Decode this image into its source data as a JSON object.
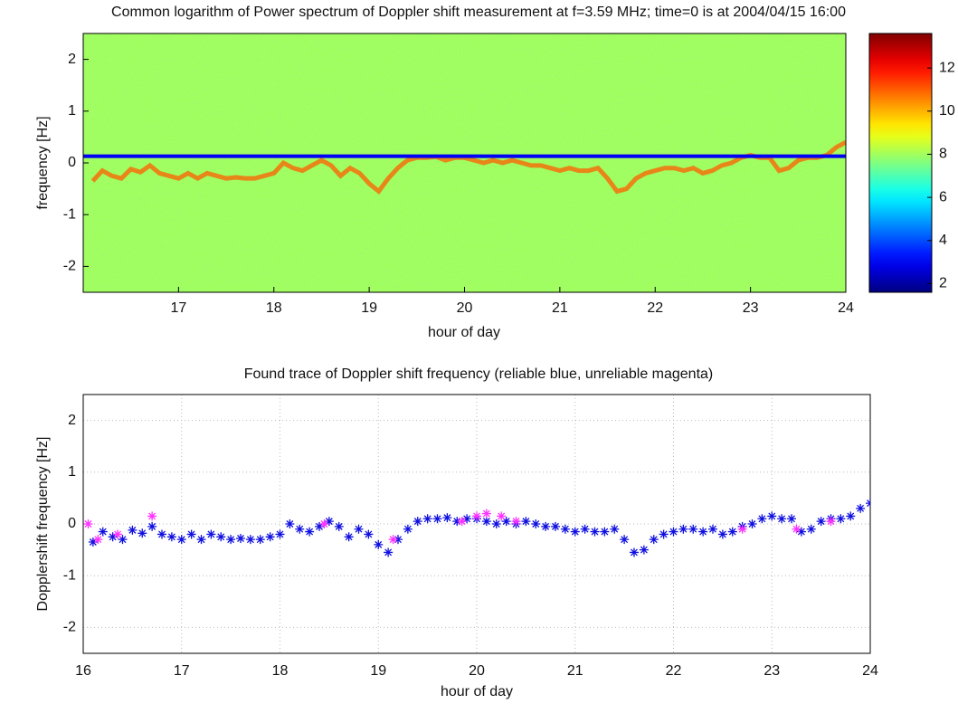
{
  "chart_data": [
    {
      "type": "spectrogram",
      "title": "Common logarithm of Power spectrum of Doppler shift measurement at f=3.59 MHz;  time=0 is at 2004/04/15 16:00",
      "xlabel": "hour of day",
      "ylabel": "frequency [Hz]",
      "xlim": [
        16,
        24
      ],
      "xticks": [
        17,
        18,
        19,
        20,
        21,
        22,
        23,
        24
      ],
      "ylim": [
        -2.5,
        2.5
      ],
      "yticks": [
        -2,
        -1,
        0,
        1,
        2
      ],
      "clim": [
        1.6,
        13.6
      ],
      "colorbar_ticks": [
        2,
        4,
        6,
        8,
        10,
        12
      ],
      "colormap": "jet",
      "background_level": 8,
      "carrier": {
        "frequency": 0.13,
        "level": 3
      },
      "trace_level": 11
    },
    {
      "type": "scatter",
      "title": "Found trace of Doppler shift frequency (reliable blue, unreliable magenta)",
      "xlabel": "hour of day",
      "ylabel": "Dopplershift frequency [Hz]",
      "xlim": [
        16,
        24
      ],
      "xticks": [
        16,
        17,
        18,
        19,
        20,
        21,
        22,
        23,
        24
      ],
      "ylim": [
        -2.5,
        2.5
      ],
      "yticks": [
        -2,
        -1,
        0,
        1,
        2
      ],
      "grid": true,
      "marker": "*",
      "series": [
        {
          "color": "#1010e0",
          "x": [
            16.1,
            16.2,
            16.3,
            16.4,
            16.5,
            16.6,
            16.7,
            16.8,
            16.9,
            17.0,
            17.1,
            17.2,
            17.3,
            17.4,
            17.5,
            17.6,
            17.7,
            17.8,
            17.9,
            18.0,
            18.1,
            18.2,
            18.3,
            18.4,
            18.5,
            18.6,
            18.7,
            18.8,
            18.9,
            19.0,
            19.1,
            19.2,
            19.3,
            19.4,
            19.5,
            19.6,
            19.7,
            19.8,
            19.9,
            20.0,
            20.1,
            20.2,
            20.3,
            20.4,
            20.5,
            20.6,
            20.7,
            20.8,
            20.9,
            21.0,
            21.1,
            21.2,
            21.3,
            21.4,
            21.5,
            21.6,
            21.7,
            21.8,
            21.9,
            22.0,
            22.1,
            22.2,
            22.3,
            22.4,
            22.5,
            22.6,
            22.7,
            22.8,
            22.9,
            23.0,
            23.1,
            23.2,
            23.3,
            23.4,
            23.5,
            23.6,
            23.7,
            23.8,
            23.9,
            24.0
          ],
          "values": [
            -0.35,
            -0.15,
            -0.25,
            -0.3,
            -0.12,
            -0.18,
            -0.05,
            -0.2,
            -0.25,
            -0.3,
            -0.2,
            -0.3,
            -0.2,
            -0.25,
            -0.3,
            -0.28,
            -0.3,
            -0.3,
            -0.25,
            -0.2,
            0.0,
            -0.1,
            -0.15,
            -0.05,
            0.05,
            -0.05,
            -0.25,
            -0.1,
            -0.2,
            -0.4,
            -0.55,
            -0.3,
            -0.1,
            0.05,
            0.1,
            0.1,
            0.12,
            0.05,
            0.1,
            0.1,
            0.05,
            0.0,
            0.05,
            0.0,
            0.05,
            0.0,
            -0.05,
            -0.05,
            -0.1,
            -0.15,
            -0.1,
            -0.15,
            -0.15,
            -0.1,
            -0.3,
            -0.55,
            -0.5,
            -0.3,
            -0.2,
            -0.15,
            -0.1,
            -0.1,
            -0.15,
            -0.1,
            -0.2,
            -0.15,
            -0.05,
            0.0,
            0.1,
            0.15,
            0.1,
            0.1,
            -0.15,
            -0.1,
            0.05,
            0.1,
            0.1,
            0.15,
            0.3,
            0.4
          ]
        },
        {
          "color": "#ff30ff",
          "x": [
            16.05,
            16.15,
            16.35,
            16.7,
            18.45,
            19.15,
            19.85,
            20.0,
            20.1,
            20.25,
            20.4,
            22.7,
            23.25,
            23.6
          ],
          "values": [
            0.0,
            -0.3,
            -0.2,
            0.15,
            0.0,
            -0.3,
            0.05,
            0.15,
            0.2,
            0.15,
            0.05,
            -0.1,
            -0.1,
            0.05
          ]
        }
      ]
    }
  ]
}
